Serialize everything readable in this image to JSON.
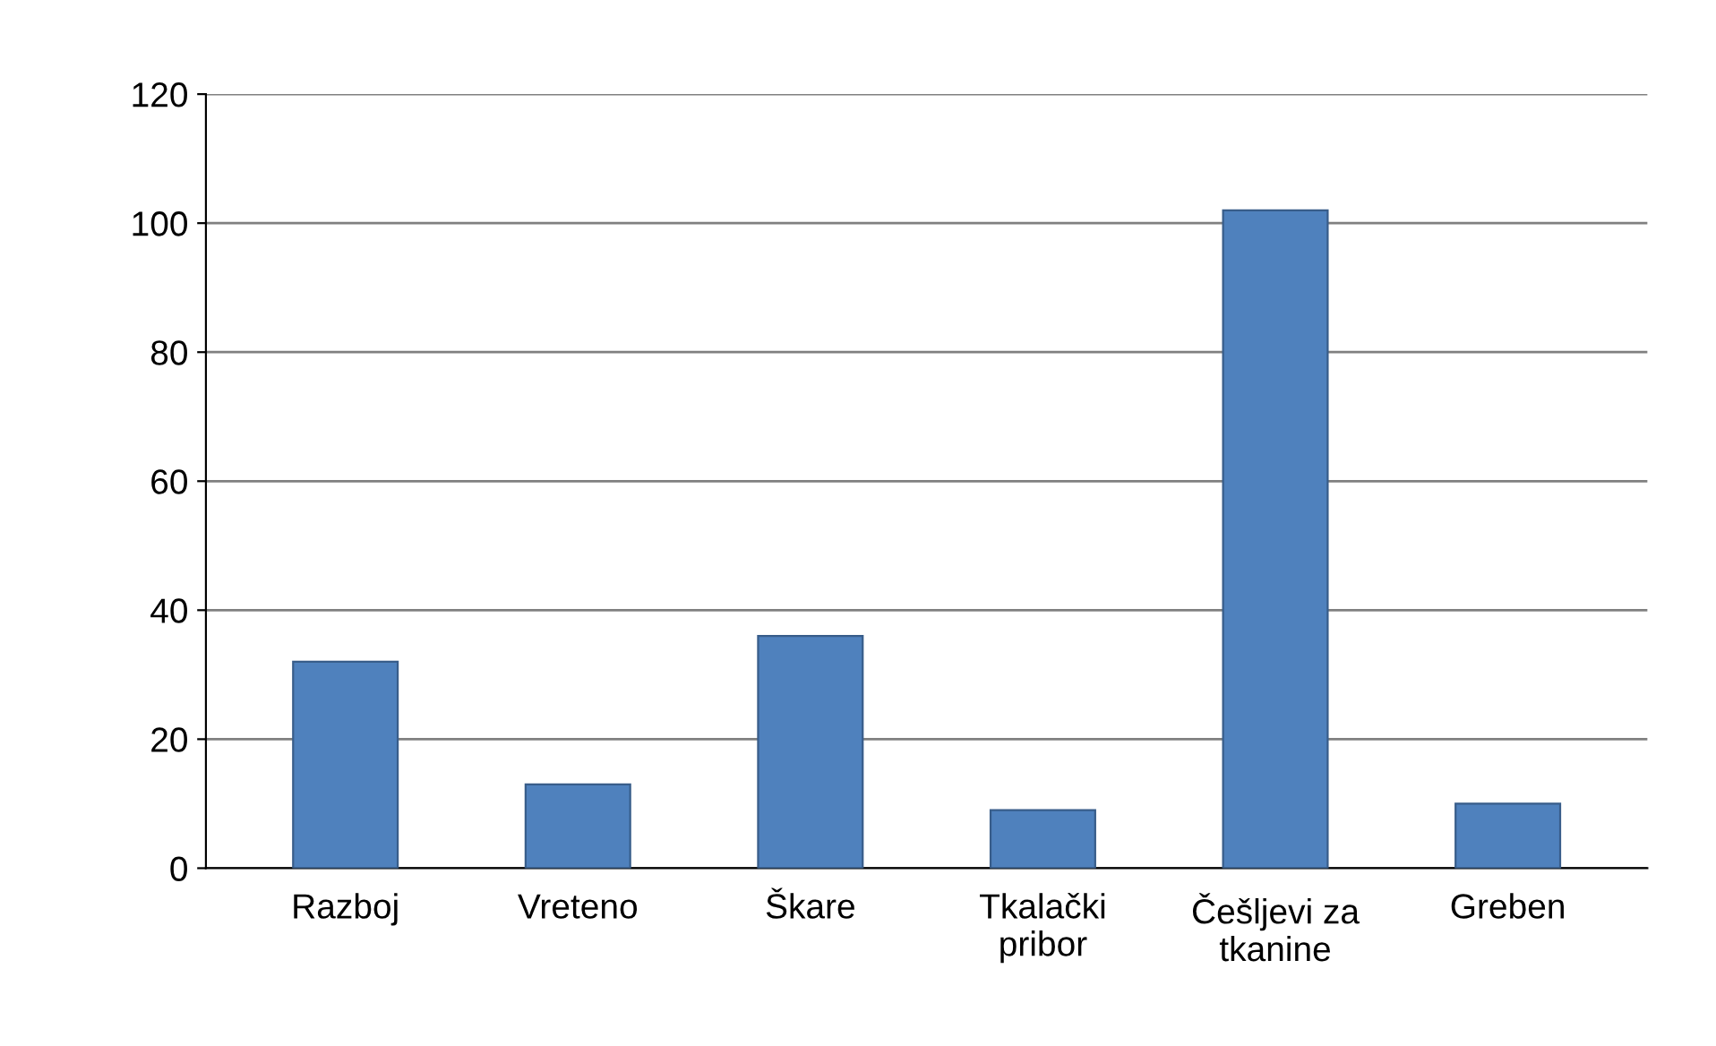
{
  "chart_data": {
    "type": "bar",
    "categories": [
      "Razboj",
      "Vreteno",
      "Škare",
      "Tkalački\npribor",
      "Češljevi za\ntkanine",
      "Greben"
    ],
    "values": [
      32,
      13,
      36,
      9,
      102,
      10
    ],
    "color": "#4f81bd",
    "ylim": [
      0,
      120
    ],
    "yticks": [
      0,
      20,
      40,
      60,
      80,
      100,
      120
    ],
    "grid": "y",
    "legend": false
  }
}
